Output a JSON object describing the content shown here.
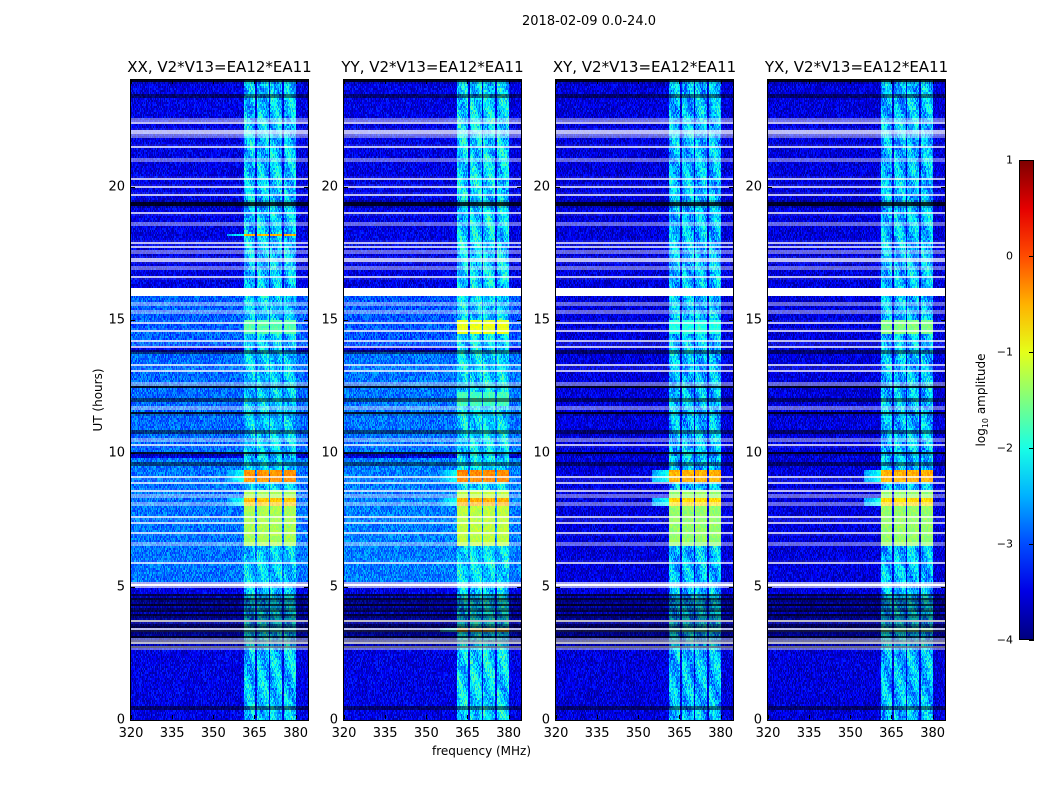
{
  "title": "2018-02-09 0.0-24.0",
  "colors": {
    "background": "#ffffff",
    "flag_white": "#ffffff",
    "flag_black": "#000000"
  },
  "chart_data": {
    "type": "heatmap",
    "title": "2018-02-09 0.0-24.0",
    "xlabel": "frequency (MHz)",
    "ylabel": "UT (hours)",
    "xlim": [
      320,
      384.5
    ],
    "ylim": [
      0,
      24
    ],
    "xticks": [
      320,
      335,
      350,
      365,
      380
    ],
    "yticks": [
      0,
      5,
      10,
      15,
      20
    ],
    "colormap": "jet",
    "colorbar": {
      "label_main": "log",
      "label_sub": "10",
      "label_rest": " amplitude",
      "range": [
        -4,
        1
      ],
      "ticks": [
        1,
        0,
        -1,
        -2,
        -3,
        -4
      ],
      "tick_labels": [
        "1",
        "0",
        "−1",
        "−2",
        "−3",
        "−4"
      ]
    },
    "bands_mhz": [
      [
        361.0,
        365.3
      ],
      [
        366.0,
        370.2
      ],
      [
        370.8,
        375.0
      ],
      [
        375.8,
        380.2
      ]
    ],
    "white_gaps_hours": [
      [
        4.98,
        5.15
      ],
      [
        15.9,
        16.2
      ],
      [
        2.7
      ],
      [
        2.9
      ],
      [
        3.0
      ],
      [
        3.4
      ],
      [
        3.7
      ],
      [
        5.9
      ],
      [
        6.6
      ],
      [
        7.0
      ],
      [
        7.4
      ],
      [
        7.6
      ],
      [
        8.1
      ],
      [
        8.4
      ],
      [
        8.6
      ],
      [
        8.9
      ],
      [
        9.1
      ],
      [
        10.3
      ],
      [
        10.5
      ],
      [
        11.7
      ],
      [
        12.6
      ],
      [
        13.1
      ],
      [
        13.3
      ],
      [
        14.0
      ],
      [
        14.2
      ],
      [
        14.6
      ],
      [
        14.9
      ],
      [
        15.3
      ],
      [
        15.6
      ],
      [
        16.6
      ],
      [
        16.95
      ],
      [
        17.2
      ],
      [
        17.3
      ],
      [
        17.55
      ],
      [
        17.75
      ],
      [
        17.9
      ],
      [
        18.6
      ],
      [
        19.0
      ],
      [
        19.7
      ],
      [
        20.0
      ],
      [
        20.3
      ],
      [
        21.0
      ],
      [
        21.5
      ],
      [
        21.9
      ],
      [
        22.0
      ],
      [
        22.1
      ],
      [
        22.4
      ],
      [
        22.5
      ]
    ],
    "black_flags_hours": [
      [
        0.45
      ],
      [
        2.75,
        4.7,
        "striped"
      ],
      [
        9.6
      ],
      [
        10.0
      ],
      [
        10.8
      ],
      [
        11.5
      ],
      [
        12.0
      ],
      [
        12.5
      ],
      [
        13.8
      ],
      [
        19.3
      ],
      [
        19.4
      ],
      [
        23.4
      ],
      [
        23.95
      ]
    ],
    "series": [
      {
        "name": "XX, V2*V13=EA12*EA11",
        "base_level": -3.5,
        "band_level": -2.4,
        "bright_regions": [
          [
            5.2,
            9.8,
            -2.8
          ],
          [
            10.0,
            13.8,
            -2.85
          ],
          [
            14.0,
            15.9,
            -2.9
          ]
        ],
        "events": [
          {
            "hours": [
              8.95,
              9.4
            ],
            "level": -0.35
          },
          {
            "hours": [
              6.5,
              8.6
            ],
            "level": -1.3
          },
          {
            "hours": [
              8.0,
              8.3
            ],
            "level": -0.6
          },
          {
            "hours": [
              14.5,
              15.0
            ],
            "level": -1.7
          },
          {
            "hours": [
              3.3,
              3.45
            ],
            "level": -2.0
          },
          {
            "hours": [
              18.15,
              18.25
            ],
            "level": -0.5
          }
        ]
      },
      {
        "name": "YY, V2*V13=EA12*EA11",
        "base_level": -3.5,
        "band_level": -2.3,
        "bright_regions": [
          [
            5.2,
            9.8,
            -2.75
          ],
          [
            10.0,
            13.8,
            -2.8
          ],
          [
            14.0,
            15.9,
            -2.95
          ]
        ],
        "events": [
          {
            "hours": [
              8.95,
              9.4
            ],
            "level": -0.3
          },
          {
            "hours": [
              6.5,
              8.6
            ],
            "level": -1.2
          },
          {
            "hours": [
              8.0,
              8.3
            ],
            "level": -0.5
          },
          {
            "hours": [
              14.5,
              15.0
            ],
            "level": -1.0
          },
          {
            "hours": [
              3.3,
              3.45
            ],
            "level": -0.5
          },
          {
            "hours": [
              11.8,
              12.3
            ],
            "level": -1.8
          }
        ]
      },
      {
        "name": "XY, V2*V13=EA12*EA11",
        "base_level": -3.55,
        "band_level": -2.45,
        "bright_regions": [],
        "events": [
          {
            "hours": [
              8.95,
              9.4
            ],
            "level": -0.5
          },
          {
            "hours": [
              6.5,
              8.6
            ],
            "level": -1.4
          },
          {
            "hours": [
              8.0,
              8.3
            ],
            "level": -0.7
          },
          {
            "hours": [
              14.5,
              15.0
            ],
            "level": -2.0
          },
          {
            "hours": [
              3.3,
              3.45
            ],
            "level": -1.8
          }
        ]
      },
      {
        "name": "YX, V2*V13=EA12*EA11",
        "base_level": -3.55,
        "band_level": -2.45,
        "bright_regions": [],
        "events": [
          {
            "hours": [
              8.95,
              9.4
            ],
            "level": -0.5
          },
          {
            "hours": [
              6.5,
              8.6
            ],
            "level": -1.4
          },
          {
            "hours": [
              8.0,
              8.3
            ],
            "level": -0.7
          },
          {
            "hours": [
              14.5,
              15.0
            ],
            "level": -1.5
          },
          {
            "hours": [
              3.3,
              3.45
            ],
            "level": -1.6
          }
        ]
      }
    ]
  }
}
